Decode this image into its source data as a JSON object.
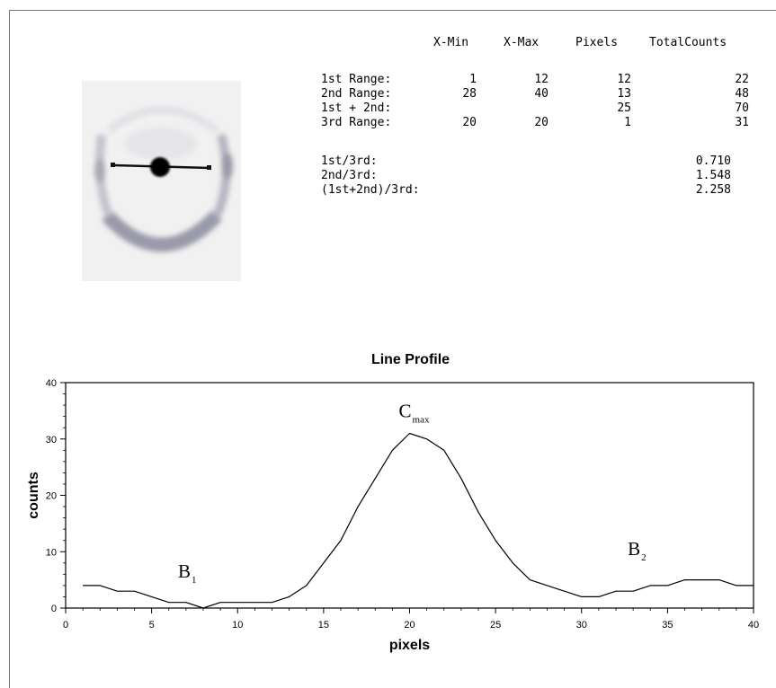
{
  "stats_table": {
    "headers": [
      "X-Min",
      "X-Max",
      "Pixels",
      "TotalCounts"
    ],
    "rows": [
      {
        "label": "1st Range:",
        "xmin": "1",
        "xmax": "12",
        "pixels": "12",
        "total": "22"
      },
      {
        "label": "2nd Range:",
        "xmin": "28",
        "xmax": "40",
        "pixels": "13",
        "total": "48"
      },
      {
        "label": "1st + 2nd:",
        "xmin": "",
        "xmax": "",
        "pixels": "25",
        "total": "70"
      },
      {
        "label": "3rd Range:",
        "xmin": "20",
        "xmax": "20",
        "pixels": "1",
        "total": "31"
      }
    ],
    "ratios": [
      {
        "label": "1st/3rd:",
        "value": "0.710"
      },
      {
        "label": "2nd/3rd:",
        "value": "1.548"
      },
      {
        "label": "(1st+2nd)/3rd:",
        "value": "2.258"
      }
    ]
  },
  "chart_data": {
    "type": "line",
    "title": "Line Profile",
    "xlabel": "pixels",
    "ylabel": "counts",
    "xlim": [
      0,
      40
    ],
    "ylim": [
      0,
      40
    ],
    "xticks": [
      0,
      5,
      10,
      15,
      20,
      25,
      30,
      35,
      40
    ],
    "yticks": [
      0,
      10,
      20,
      30,
      40
    ],
    "x": [
      1,
      2,
      3,
      4,
      5,
      6,
      7,
      8,
      9,
      10,
      11,
      12,
      13,
      14,
      15,
      16,
      17,
      18,
      19,
      20,
      21,
      22,
      23,
      24,
      25,
      26,
      27,
      28,
      29,
      30,
      31,
      32,
      33,
      34,
      35,
      36,
      37,
      38,
      39,
      40
    ],
    "series": [
      {
        "values": [
          4,
          4,
          3,
          3,
          2,
          1,
          1,
          0,
          1,
          1,
          1,
          1,
          2,
          4,
          8,
          12,
          18,
          23,
          28,
          31,
          30,
          28,
          23,
          17,
          12,
          8,
          5,
          4,
          3,
          2,
          2,
          3,
          3,
          4,
          4,
          5,
          5,
          5,
          4,
          4
        ]
      }
    ],
    "annotations": [
      {
        "text": "C",
        "sub": "max",
        "x": 20,
        "y": 31
      },
      {
        "text": "B",
        "sub": "1",
        "x": 8,
        "y": 0
      },
      {
        "text": "B",
        "sub": "2",
        "x": 33,
        "y": 3
      }
    ],
    "colors": {
      "line": "#000000",
      "axis": "#000000"
    }
  }
}
